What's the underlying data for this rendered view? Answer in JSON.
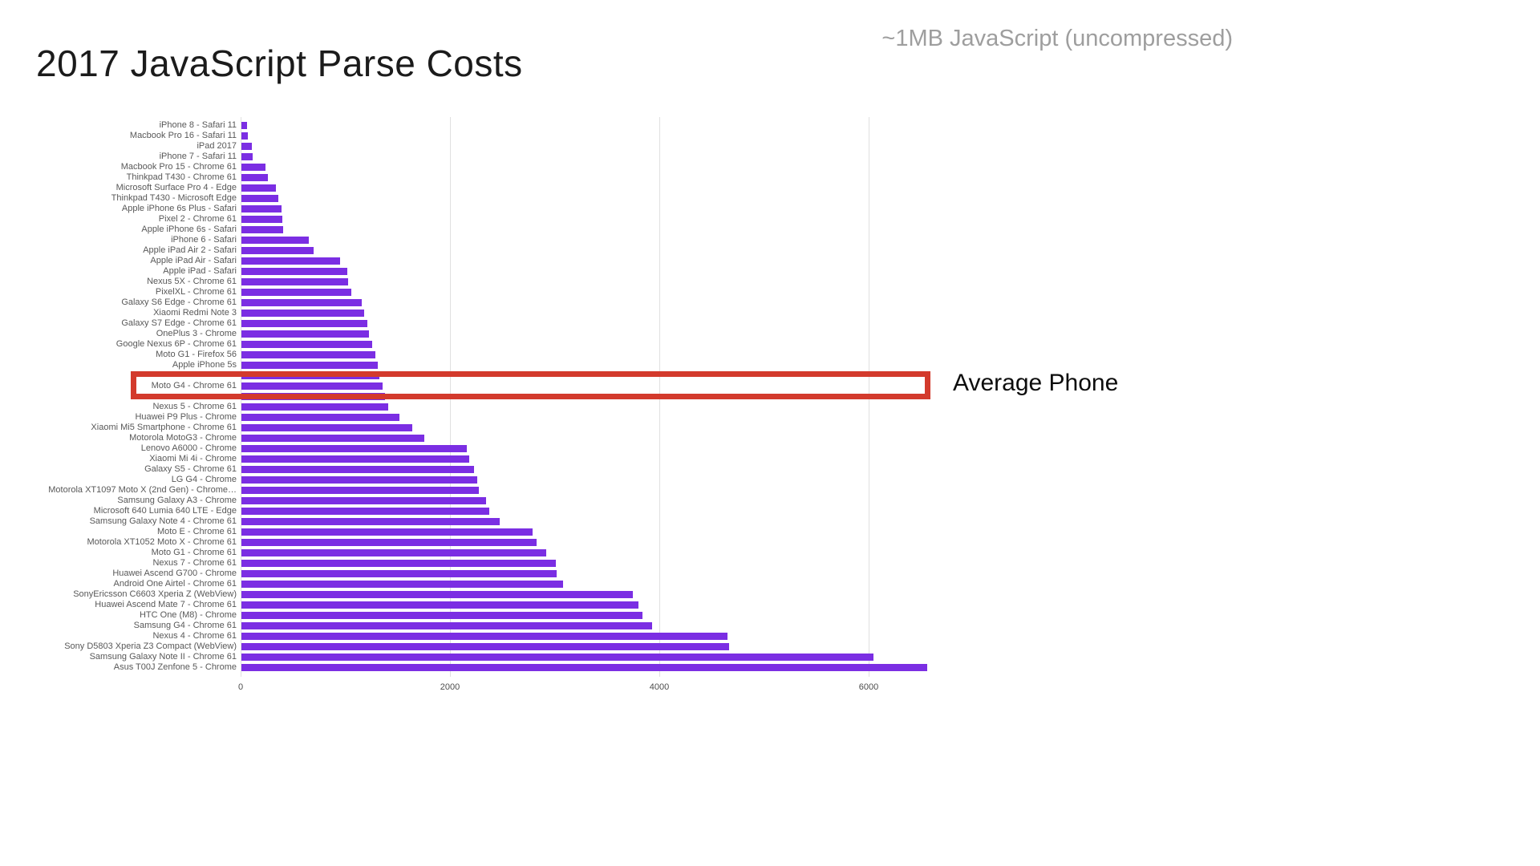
{
  "title": "2017 JavaScript Parse Costs",
  "subtitle": "~1MB JavaScript (uncompressed)",
  "annotation": {
    "label": "Average Phone"
  },
  "colors": {
    "bar": "#7b2ee3",
    "highlight_box": "#d33a2c",
    "gridline": "#e0e0e0",
    "title": "#1b1b1b",
    "subtitle": "#9e9e9e",
    "axis_label": "#585858"
  },
  "chart_data": {
    "type": "bar",
    "orientation": "horizontal",
    "title": "2017 JavaScript Parse Costs",
    "subtitle": "~1MB JavaScript (uncompressed)",
    "xlabel": "",
    "ylabel": "",
    "x_ticks": [
      0,
      2000,
      4000,
      6000
    ],
    "xlim": [
      0,
      6700
    ],
    "grid": true,
    "highlight": {
      "category": "Moto G4 - Chrome 61",
      "label": "Average Phone"
    },
    "highlight_index": 25,
    "obscured_indices": [
      24,
      26
    ],
    "categories": [
      "iPhone 8 - Safari 11",
      "Macbook Pro 16 - Safari 11",
      "iPad 2017",
      "iPhone 7 - Safari 11",
      "Macbook Pro 15 - Chrome 61",
      "Thinkpad T430 - Chrome 61",
      "Microsoft Surface Pro 4 - Edge",
      "Thinkpad T430 - Microsoft Edge",
      "Apple iPhone 6s Plus - Safari",
      "Pixel 2 - Chrome 61",
      "Apple iPhone 6s - Safari",
      "iPhone 6 - Safari",
      "Apple iPad Air 2 - Safari",
      "Apple iPad Air - Safari",
      "Apple iPad - Safari",
      "Nexus 5X - Chrome 61",
      "PixelXL - Chrome 61",
      "Galaxy S6 Edge - Chrome 61",
      "Xiaomi Redmi Note 3",
      "Galaxy S7 Edge - Chrome 61",
      "OnePlus 3 - Chrome",
      "Google Nexus 6P - Chrome 61",
      "Moto G1 - Firefox 56",
      "Apple iPhone 5s",
      "",
      "Moto G4 - Chrome 61",
      "",
      "Nexus 5 - Chrome 61",
      "Huawei P9 Plus - Chrome",
      "Xiaomi Mi5 Smartphone - Chrome 61",
      "Motorola MotoG3 - Chrome",
      "Lenovo A6000 - Chrome",
      "Xiaomi Mi 4i - Chrome",
      "Galaxy S5 - Chrome 61",
      "LG G4 - Chrome",
      "Motorola XT1097 Moto X (2nd Gen) - Chrome…",
      "Samsung Galaxy A3 - Chrome",
      "Microsoft 640 Lumia 640 LTE - Edge",
      "Samsung Galaxy Note 4 - Chrome 61",
      "Moto E - Chrome 61",
      "Motorola XT1052 Moto X - Chrome 61",
      "Moto G1 - Chrome 61",
      "Nexus 7 - Chrome 61",
      "Huawei Ascend G700 - Chrome",
      "Android One Airtel - Chrome 61",
      "SonyEricsson C6603 Xperia Z (WebView)",
      "Huawei Ascend Mate 7 - Chrome 61",
      "HTC One (M8) - Chrome",
      "Samsung G4 - Chrome 61",
      "Nexus 4 - Chrome 61",
      "Sony D5803 Xperia Z3 Compact (WebView)",
      "Samsung Galaxy Note II - Chrome 61",
      "Asus T00J Zenfone 5 - Chrome"
    ],
    "values": [
      50,
      60,
      100,
      110,
      230,
      250,
      330,
      350,
      380,
      390,
      400,
      640,
      690,
      940,
      1010,
      1020,
      1050,
      1150,
      1170,
      1200,
      1220,
      1250,
      1280,
      1300,
      1320,
      1350,
      1370,
      1400,
      1510,
      1630,
      1750,
      2150,
      2180,
      2220,
      2250,
      2270,
      2340,
      2370,
      2470,
      2780,
      2820,
      2910,
      3000,
      3010,
      3070,
      3740,
      3790,
      3830,
      3920,
      4640,
      4660,
      6040,
      6550
    ]
  }
}
